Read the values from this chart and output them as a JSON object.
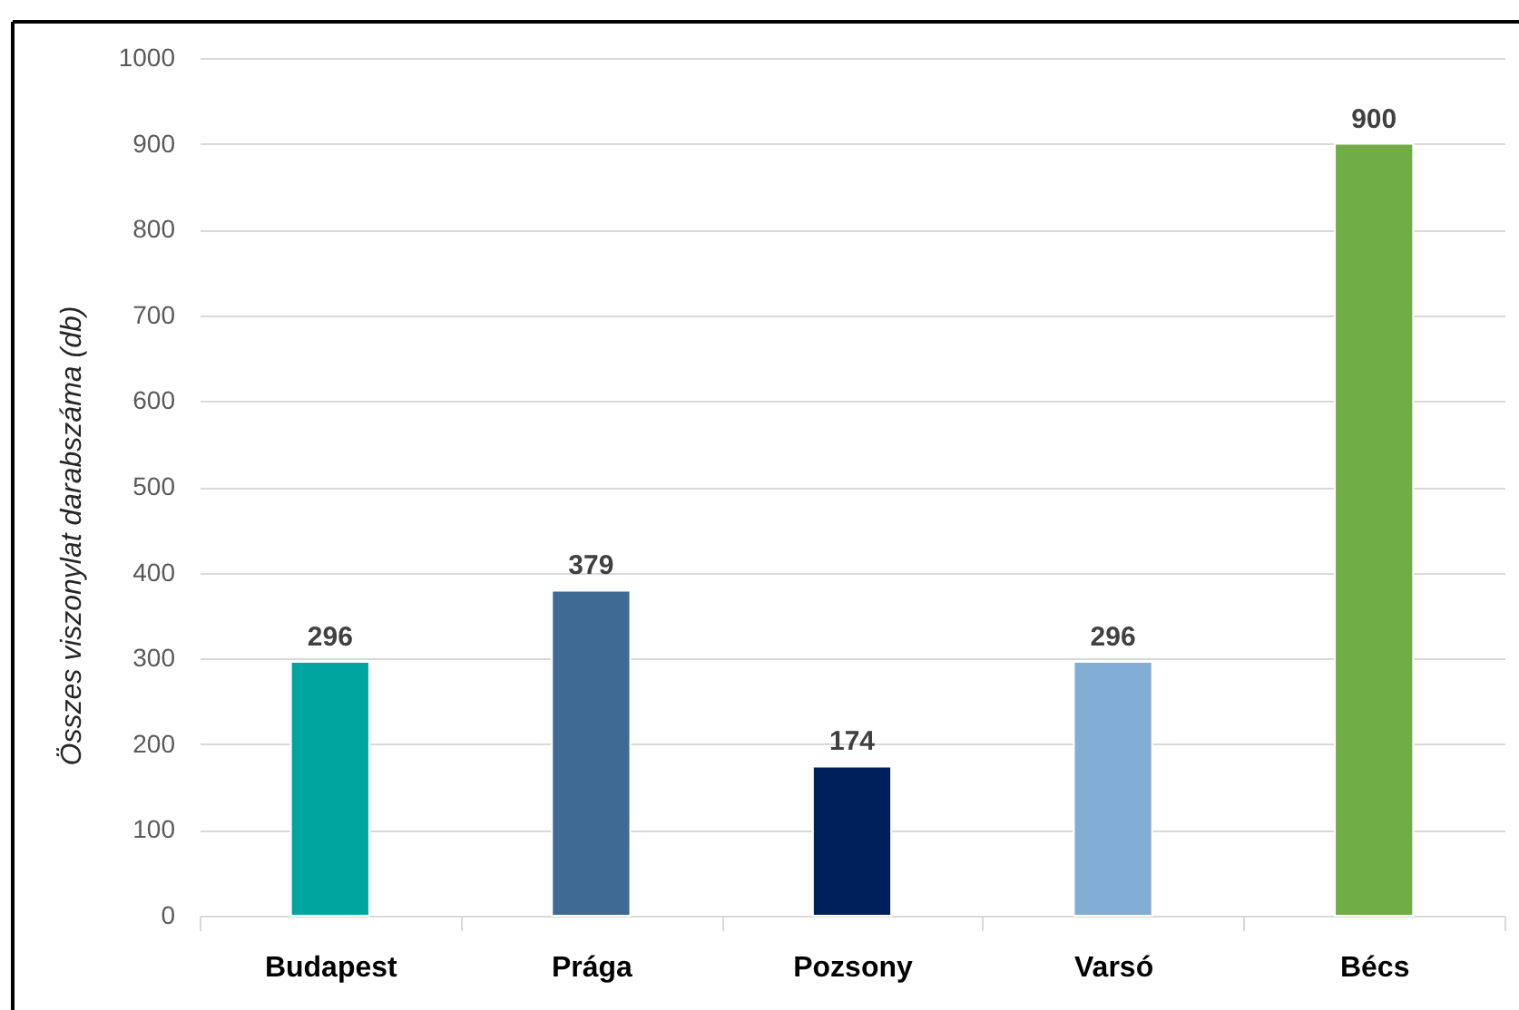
{
  "chart_data": {
    "type": "bar",
    "ylabel": "Összes viszonylat darabszáma (db)",
    "categories": [
      "Budapest",
      "Prága",
      "Pozsony",
      "Varsó",
      "Bécs"
    ],
    "values": [
      296,
      379,
      174,
      296,
      900
    ],
    "colors": [
      "#00a5a0",
      "#3e6a93",
      "#00205b",
      "#82aed6",
      "#70ad47"
    ],
    "ylim": [
      0,
      1000
    ],
    "yticks": [
      0,
      100,
      200,
      300,
      400,
      500,
      600,
      700,
      800,
      900,
      1000
    ],
    "grid": "y",
    "data_labels": true
  }
}
